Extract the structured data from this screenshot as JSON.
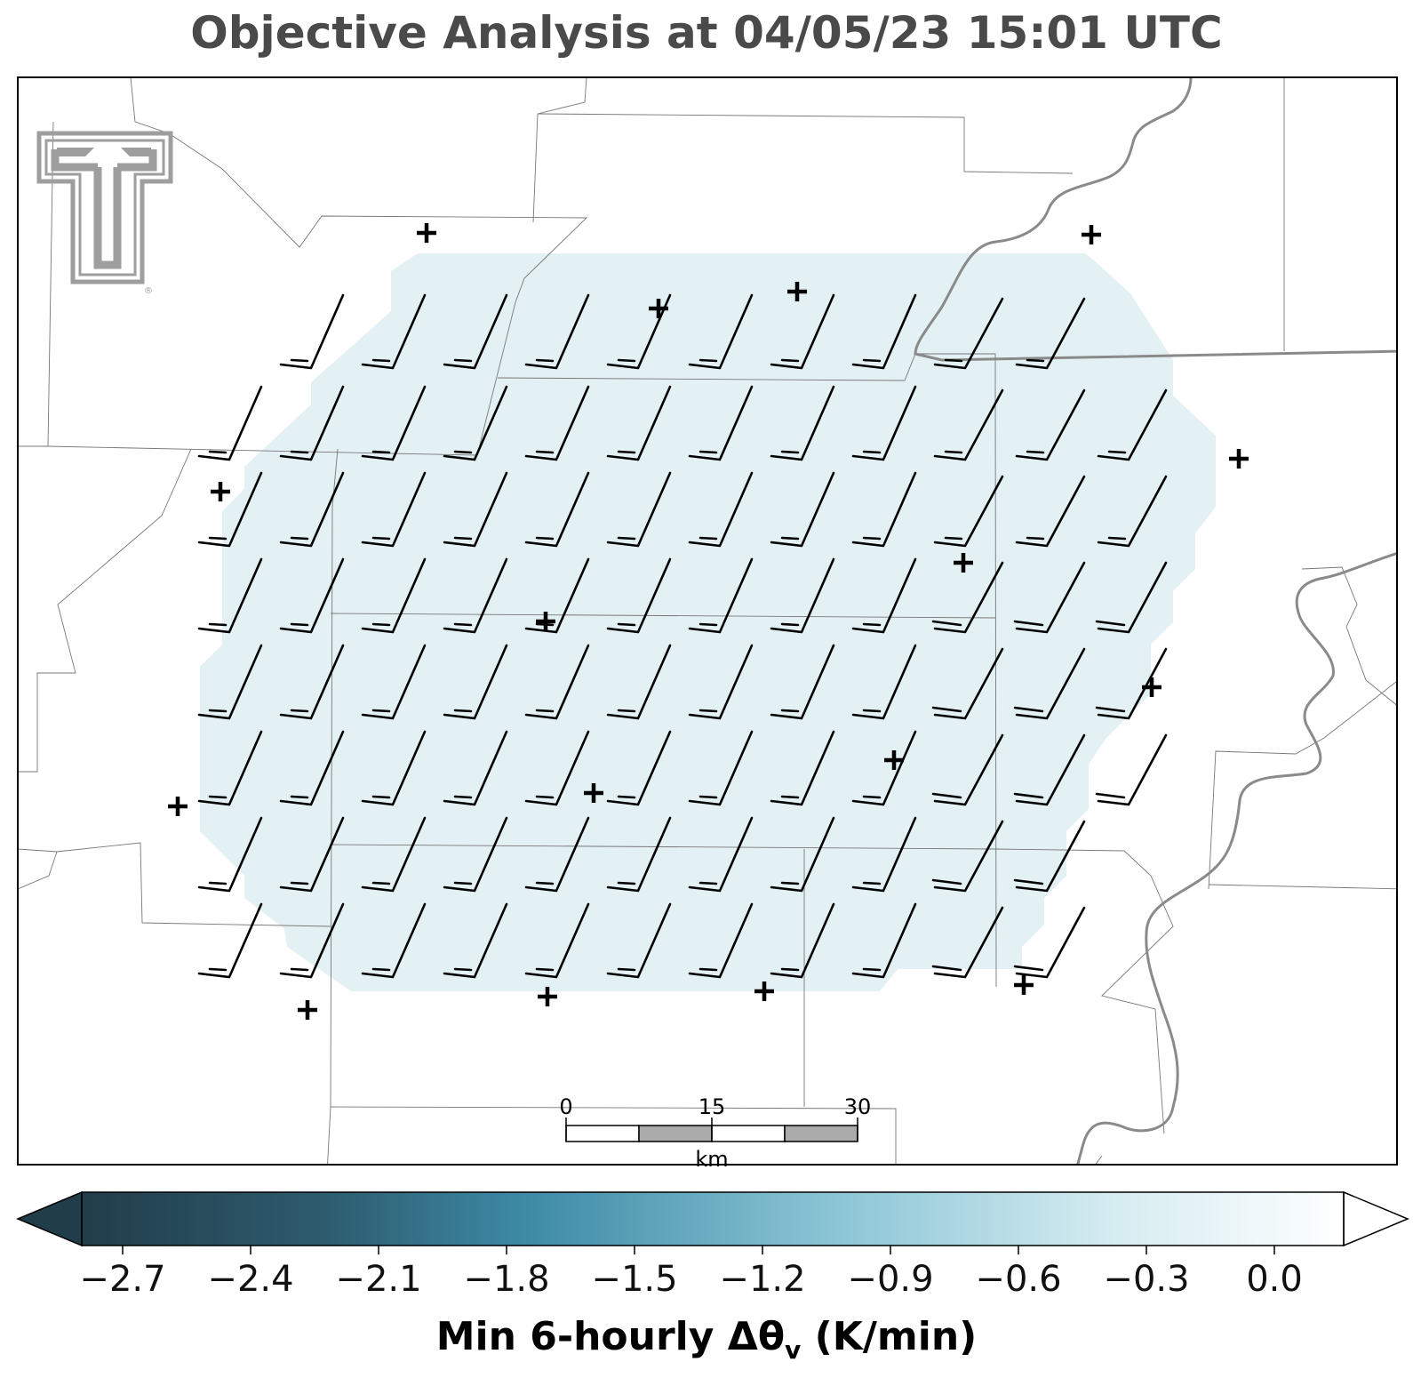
{
  "title": "Objective Analysis at 04/05/23 15:01 UTC",
  "logo": {
    "name": "texas-tech-double-t-logo",
    "color": "#9e9e9e",
    "mark": "®"
  },
  "map": {
    "analysis_fill_color": "#e4f1f4",
    "boundary_color": "#777777",
    "river_color": "#8a8a8a",
    "barb_color": "#000000",
    "station_marker": "+"
  },
  "scale_bar": {
    "labels": [
      "0",
      "15",
      "30"
    ],
    "unit": "km"
  },
  "colorbar": {
    "label_main": "Min 6-hourly Δθ",
    "label_sub": "v",
    "label_tail": " (K/min)",
    "ticks": [
      "−2.7",
      "−2.4",
      "−2.1",
      "−1.8",
      "−1.5",
      "−1.2",
      "−0.9",
      "−0.6",
      "−0.3",
      "0.0"
    ],
    "colors": [
      "#223d4a",
      "#2e5d70",
      "#3d8aa5",
      "#8cc6d6",
      "#d6ecf1",
      "#ffffff"
    ]
  }
}
